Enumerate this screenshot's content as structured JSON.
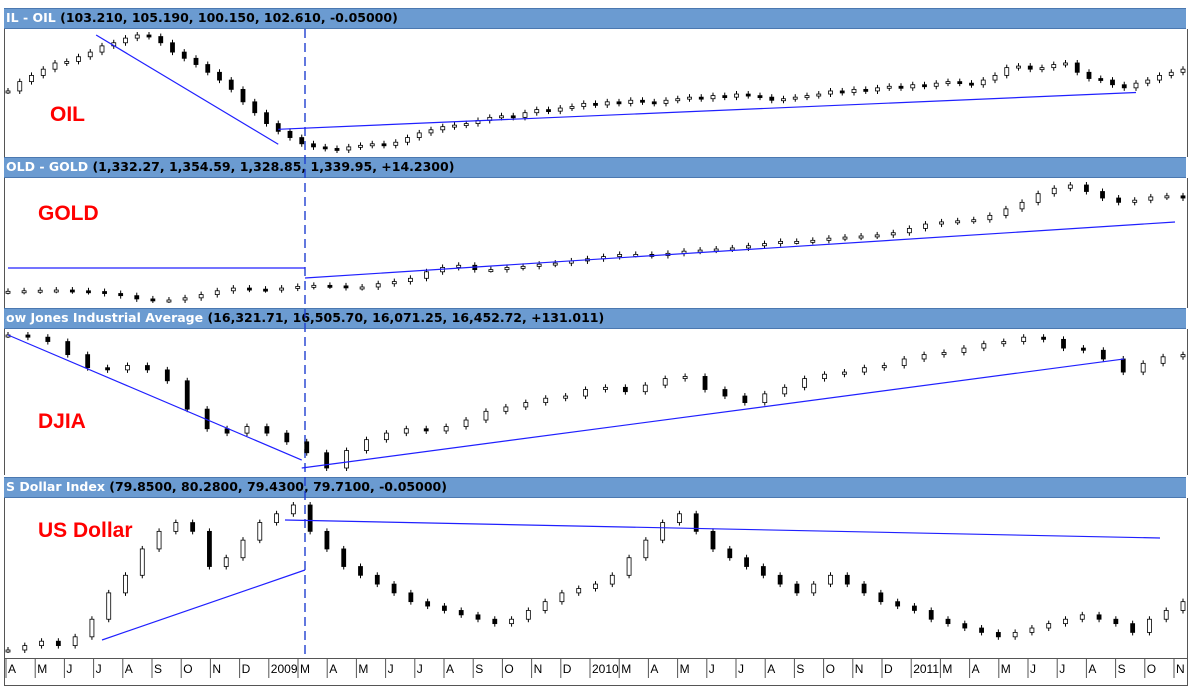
{
  "chart_data": [
    {
      "type": "candlestick",
      "title": "IL - OIL",
      "ohlc": "(103.210, 105.190, 100.150, 102.610, -0.05000)",
      "label": "OIL",
      "series": [
        {
          "values": [
            72,
            78,
            82,
            86,
            90,
            91,
            94,
            97,
            101,
            103,
            106,
            108,
            107,
            103,
            97,
            93,
            89,
            84,
            79,
            73,
            65,
            58,
            51,
            46,
            42,
            38,
            36,
            35,
            34,
            36,
            37,
            38,
            37,
            39,
            42,
            45,
            47,
            49,
            50,
            51,
            53,
            55,
            56,
            55,
            58,
            60,
            59,
            61,
            62,
            64,
            63,
            65,
            64,
            66,
            65,
            64,
            66,
            67,
            68,
            67,
            69,
            68,
            70,
            69,
            68,
            66,
            67,
            68,
            69,
            70,
            72,
            71,
            73,
            72,
            74,
            75,
            74,
            76,
            75,
            77,
            78,
            77,
            76,
            79,
            82,
            87,
            88,
            86,
            87,
            89,
            90,
            84,
            80,
            79,
            76,
            74,
            77,
            79,
            82,
            84,
            86
          ]
        }
      ],
      "trendlines": [
        {
          "from": [
            "2008-07",
            113
          ],
          "to": [
            "2009-03",
            43
          ]
        },
        {
          "from": [
            "2009-03",
            49
          ],
          "to": [
            "2011-08",
            80
          ]
        }
      ]
    },
    {
      "type": "candlestick",
      "title": "OLD - GOLD",
      "ohlc": "(1,332.27, 1,354.59, 1,328.85, 1,339.95, +14.2300)",
      "label": "GOLD",
      "series": [
        {
          "values": [
            900,
            905,
            910,
            912,
            905,
            898,
            880,
            860,
            830,
            820,
            820,
            840,
            870,
            905,
            930,
            920,
            915,
            930,
            945,
            955,
            950,
            935,
            940,
            970,
            990,
            1020,
            1080,
            1120,
            1140,
            1100,
            1100,
            1120,
            1130,
            1150,
            1160,
            1180,
            1200,
            1220,
            1240,
            1240,
            1230,
            1250,
            1270,
            1280,
            1290,
            1300,
            1320,
            1340,
            1360,
            1360,
            1370,
            1390,
            1400,
            1410,
            1420,
            1440,
            1480,
            1520,
            1540,
            1550,
            1560,
            1600,
            1660,
            1720,
            1800,
            1850,
            1880,
            1820,
            1760,
            1720,
            1740,
            1770,
            1780,
            1760
          ]
        }
      ]
    },
    {
      "type": "candlestick",
      "title": "ow Jones Industrial Average",
      "ohlc": "(16,321.71, 16,505.70, 16,071.25, 16,452.72, +131.011)",
      "label": "DJIA",
      "series": [
        {
          "values": [
            12900,
            12800,
            12600,
            12000,
            11400,
            11300,
            11500,
            11300,
            10800,
            9500,
            8600,
            8400,
            8700,
            8400,
            8000,
            7500,
            6800,
            7600,
            8100,
            8400,
            8600,
            8500,
            8700,
            9000,
            9400,
            9600,
            9800,
            10000,
            10100,
            10400,
            10500,
            10300,
            10600,
            10900,
            11000,
            10400,
            10100,
            9800,
            10200,
            10500,
            10900,
            11100,
            11200,
            11400,
            11500,
            11800,
            12000,
            12100,
            12300,
            12500,
            12600,
            12800,
            12700,
            12300,
            12200,
            11800,
            11200,
            11600,
            11900,
            12000
          ]
        }
      ]
    },
    {
      "type": "candlestick",
      "title": "S Dollar Index",
      "ohlc": "(79.8500, 80.2800, 79.4300, 79.7100, -0.05000)",
      "label": "US Dollar",
      "series": [
        {
          "values": [
            72.5,
            73,
            73.5,
            73,
            74,
            76,
            79,
            81,
            84,
            86,
            87,
            86,
            82,
            83,
            85,
            87,
            88,
            89,
            86,
            84,
            82,
            81,
            80,
            79,
            78,
            77.5,
            77,
            76.5,
            76,
            75.5,
            76,
            77,
            78,
            79,
            79.5,
            80,
            81,
            83,
            85,
            87,
            88,
            86,
            84,
            83,
            82,
            81,
            80,
            79,
            80,
            81,
            80,
            79,
            78,
            77.5,
            77,
            76,
            75.5,
            75,
            74.5,
            74,
            74.5,
            75,
            75.5,
            76,
            76.5,
            76,
            75.5,
            74.5,
            76,
            77,
            78
          ]
        }
      ]
    }
  ],
  "x_axis": {
    "labels": [
      "A",
      "M",
      "J",
      "J",
      "A",
      "S",
      "O",
      "N",
      "D",
      "2009",
      "M",
      "A",
      "M",
      "J",
      "J",
      "A",
      "S",
      "O",
      "N",
      "D",
      "2010",
      "M",
      "A",
      "M",
      "J",
      "J",
      "A",
      "S",
      "O",
      "N",
      "D",
      "2011",
      "M",
      "A",
      "M",
      "J",
      "J",
      "A",
      "S",
      "O",
      "N"
    ]
  },
  "colors": {
    "title_bar": "#6b9bd1",
    "trendline": "#2020ff",
    "label": "#ff0000",
    "candle": "#000000"
  }
}
